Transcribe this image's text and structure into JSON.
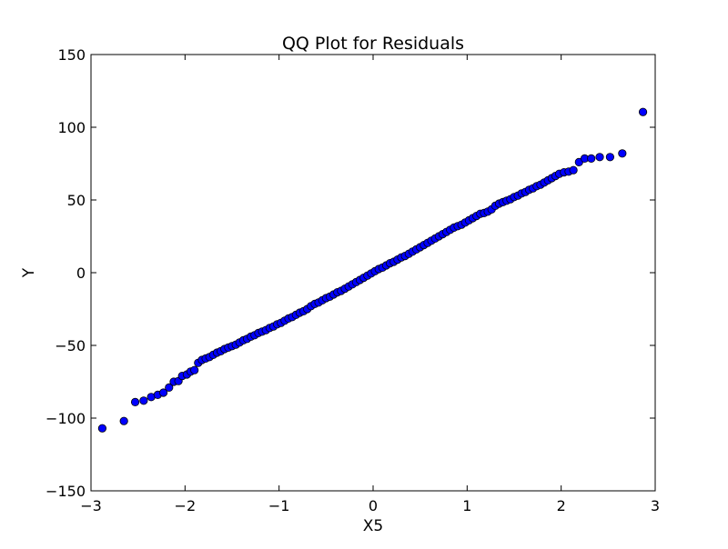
{
  "chart_data": {
    "type": "scatter",
    "title": "QQ Plot for Residuals",
    "xlabel": "X5",
    "ylabel": "Y",
    "xlim": [
      -3,
      3
    ],
    "ylim": [
      -150,
      150
    ],
    "x_ticks": [
      -3,
      -2,
      -1,
      0,
      1,
      2,
      3
    ],
    "y_ticks": [
      -150,
      -100,
      -50,
      0,
      50,
      100,
      150
    ],
    "x_tick_labels": [
      "−3",
      "−2",
      "−1",
      "0",
      "1",
      "2",
      "3"
    ],
    "y_tick_labels": [
      "−150",
      "−100",
      "−50",
      "0",
      "50",
      "100",
      "150"
    ],
    "grid": false,
    "marker_color": "#0000ff",
    "marker_edge_color": "#000000",
    "series": [
      {
        "points": [
          [
            -2.88,
            -107
          ],
          [
            -2.65,
            -102
          ],
          [
            -2.53,
            -89
          ],
          [
            -2.44,
            -88
          ],
          [
            -2.36,
            -85.5
          ],
          [
            -2.29,
            -84
          ],
          [
            -2.23,
            -82.5
          ],
          [
            -2.17,
            -79
          ],
          [
            -2.12,
            -75
          ],
          [
            -2.07,
            -74.5
          ],
          [
            -2.03,
            -71
          ],
          [
            -1.98,
            -70
          ],
          [
            -1.94,
            -68
          ],
          [
            -1.9,
            -67
          ],
          [
            -1.86,
            -62
          ],
          [
            -1.82,
            -60
          ],
          [
            -1.78,
            -59
          ],
          [
            -1.74,
            -58
          ],
          [
            -1.7,
            -56.5
          ],
          [
            -1.66,
            -55
          ],
          [
            -1.62,
            -54
          ],
          [
            -1.58,
            -52.5
          ],
          [
            -1.54,
            -51.5
          ],
          [
            -1.5,
            -50.5
          ],
          [
            -1.46,
            -49.5
          ],
          [
            -1.42,
            -48
          ],
          [
            -1.38,
            -46.5
          ],
          [
            -1.34,
            -45.5
          ],
          [
            -1.3,
            -44
          ],
          [
            -1.26,
            -43
          ],
          [
            -1.22,
            -41.5
          ],
          [
            -1.18,
            -40.5
          ],
          [
            -1.14,
            -39.5
          ],
          [
            -1.1,
            -38
          ],
          [
            -1.06,
            -37
          ],
          [
            -1.02,
            -35.5
          ],
          [
            -0.98,
            -34.5
          ],
          [
            -0.94,
            -33
          ],
          [
            -0.9,
            -31.5
          ],
          [
            -0.86,
            -30.5
          ],
          [
            -0.82,
            -29
          ],
          [
            -0.78,
            -27.5
          ],
          [
            -0.74,
            -26.5
          ],
          [
            -0.7,
            -25
          ],
          [
            -0.66,
            -23
          ],
          [
            -0.62,
            -21.5
          ],
          [
            -0.58,
            -20.5
          ],
          [
            -0.54,
            -19
          ],
          [
            -0.5,
            -17.5
          ],
          [
            -0.46,
            -16.5
          ],
          [
            -0.42,
            -15
          ],
          [
            -0.38,
            -13.5
          ],
          [
            -0.34,
            -12.5
          ],
          [
            -0.3,
            -11
          ],
          [
            -0.26,
            -9.5
          ],
          [
            -0.22,
            -8
          ],
          [
            -0.18,
            -6.5
          ],
          [
            -0.14,
            -5
          ],
          [
            -0.1,
            -3.5
          ],
          [
            -0.06,
            -2
          ],
          [
            -0.02,
            -0.5
          ],
          [
            0.02,
            1
          ],
          [
            0.06,
            2.5
          ],
          [
            0.1,
            3.5
          ],
          [
            0.14,
            5
          ],
          [
            0.18,
            6.5
          ],
          [
            0.22,
            7.5
          ],
          [
            0.26,
            9
          ],
          [
            0.3,
            10.5
          ],
          [
            0.34,
            11.5
          ],
          [
            0.38,
            13
          ],
          [
            0.42,
            14.5
          ],
          [
            0.46,
            16
          ],
          [
            0.5,
            17.5
          ],
          [
            0.54,
            19
          ],
          [
            0.58,
            20.5
          ],
          [
            0.62,
            22
          ],
          [
            0.66,
            23.5
          ],
          [
            0.7,
            25
          ],
          [
            0.74,
            26.5
          ],
          [
            0.78,
            28
          ],
          [
            0.82,
            29.5
          ],
          [
            0.86,
            31
          ],
          [
            0.9,
            32
          ],
          [
            0.94,
            33
          ],
          [
            0.98,
            34.5
          ],
          [
            1.02,
            36
          ],
          [
            1.06,
            37.5
          ],
          [
            1.1,
            39
          ],
          [
            1.14,
            40.5
          ],
          [
            1.18,
            41
          ],
          [
            1.22,
            42
          ],
          [
            1.26,
            43.5
          ],
          [
            1.3,
            46
          ],
          [
            1.34,
            47.5
          ],
          [
            1.38,
            48.5
          ],
          [
            1.42,
            49.5
          ],
          [
            1.46,
            50.5
          ],
          [
            1.5,
            52
          ],
          [
            1.54,
            53
          ],
          [
            1.58,
            54.5
          ],
          [
            1.62,
            55.5
          ],
          [
            1.66,
            57
          ],
          [
            1.7,
            58
          ],
          [
            1.74,
            59.5
          ],
          [
            1.78,
            60.5
          ],
          [
            1.82,
            62
          ],
          [
            1.86,
            63.5
          ],
          [
            1.9,
            65
          ],
          [
            1.94,
            66.5
          ],
          [
            1.98,
            68
          ],
          [
            2.03,
            69
          ],
          [
            2.08,
            69.5
          ],
          [
            2.13,
            70.5
          ],
          [
            2.19,
            76
          ],
          [
            2.25,
            78.5
          ],
          [
            2.32,
            78.5
          ],
          [
            2.41,
            79.5
          ],
          [
            2.52,
            79.5
          ],
          [
            2.65,
            82
          ],
          [
            2.87,
            110.5
          ]
        ]
      }
    ]
  }
}
